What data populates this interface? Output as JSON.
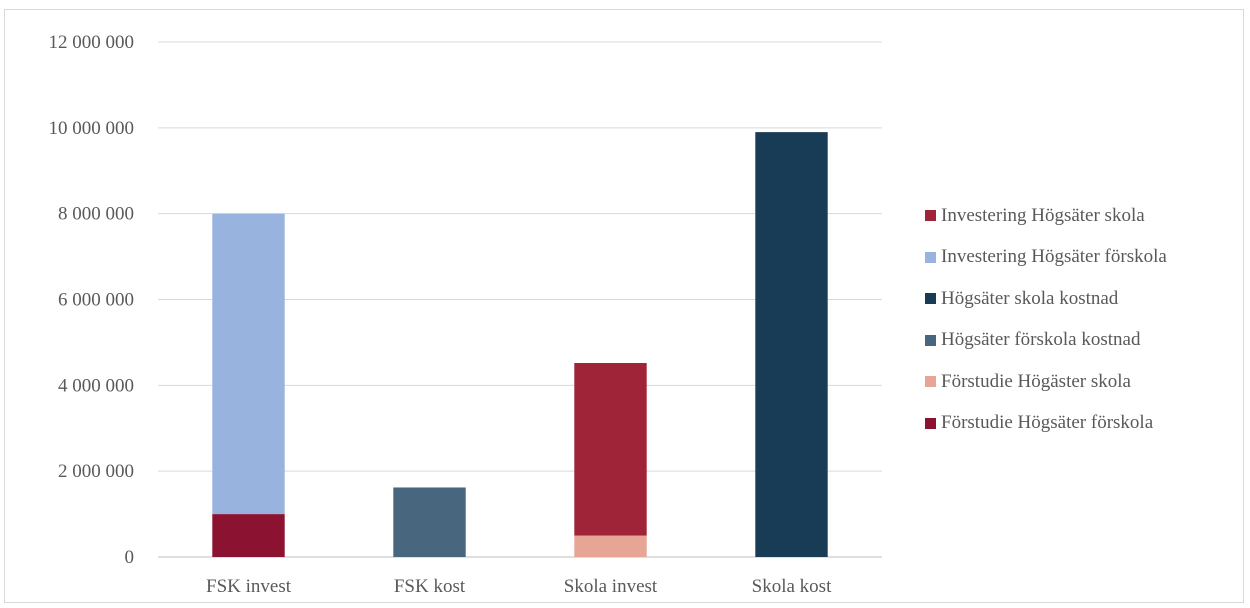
{
  "chart_data": {
    "type": "bar",
    "stacked": true,
    "categories": [
      "FSK invest",
      "FSK kost",
      "Skola invest",
      "Skola kost"
    ],
    "ylim": [
      0,
      12000000
    ],
    "yticks": [
      0,
      2000000,
      4000000,
      6000000,
      8000000,
      10000000,
      12000000
    ],
    "ytick_labels": [
      "0",
      "2 000 000",
      "4 000 000",
      "6 000 000",
      "8 000 000",
      "10 000 000",
      "12 000 000"
    ],
    "grid": true,
    "legend_position": "right",
    "title": "",
    "xlabel": "",
    "ylabel": "",
    "series": [
      {
        "name": "Förstudie Högsäter förskola",
        "color": "#8b1230",
        "values": [
          1000000,
          0,
          0,
          0
        ]
      },
      {
        "name": "Förstudie Högäster skola",
        "color": "#e6a595",
        "values": [
          0,
          0,
          500000,
          0
        ]
      },
      {
        "name": "Högsäter förskola kostnad",
        "color": "#48677e",
        "values": [
          0,
          1620000,
          0,
          0
        ]
      },
      {
        "name": "Högsäter skola kostnad",
        "color": "#183b56",
        "values": [
          0,
          0,
          0,
          9900000
        ]
      },
      {
        "name": "Investering Högsäter förskola",
        "color": "#98b3de",
        "values": [
          7000000,
          0,
          0,
          0
        ]
      },
      {
        "name": "Investering Högsäter skola",
        "color": "#a02437",
        "values": [
          0,
          0,
          4020000,
          0
        ]
      }
    ],
    "legend_order": [
      5,
      4,
      3,
      2,
      1,
      0
    ]
  }
}
